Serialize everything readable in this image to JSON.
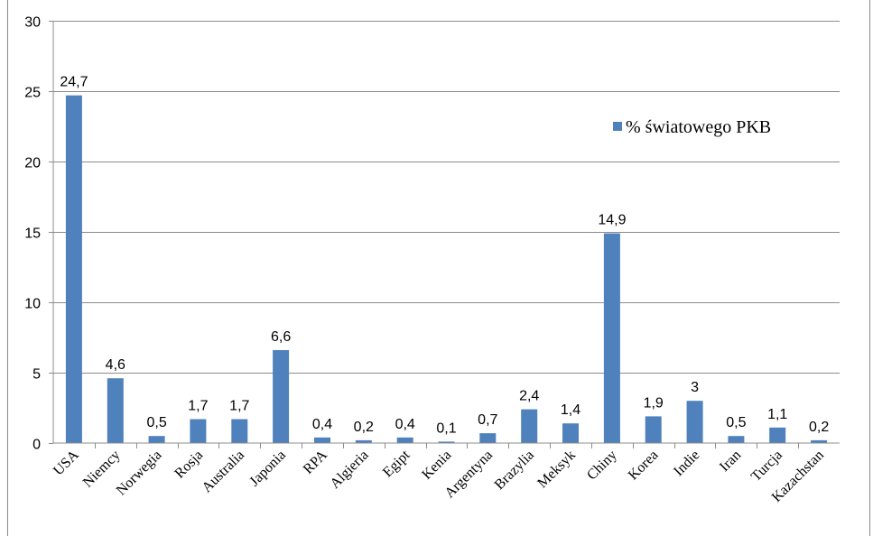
{
  "chart_data": {
    "type": "bar",
    "categories": [
      "USA",
      "Niemcy",
      "Norwegia",
      "Rosja",
      "Australia",
      "Japonia",
      "RPA",
      "Algieria",
      "Egipt",
      "Kenia",
      "Argentyna",
      "Brazylia",
      "Meksyk",
      "Chiny",
      "Korea",
      "Indie",
      "Iran",
      "Turcja",
      "Kazachstan"
    ],
    "series": [
      {
        "name": "% światowego PKB",
        "values": [
          24.7,
          4.6,
          0.5,
          1.7,
          1.7,
          6.6,
          0.4,
          0.2,
          0.4,
          0.1,
          0.7,
          2.4,
          1.4,
          14.9,
          1.9,
          3,
          0.5,
          1.1,
          0.2
        ],
        "labels": [
          "24,7",
          "4,6",
          "0,5",
          "1,7",
          "1,7",
          "6,6",
          "0,4",
          "0,2",
          "0,4",
          "0,1",
          "0,7",
          "2,4",
          "1,4",
          "14,9",
          "1,9",
          "3",
          "0,5",
          "1,1",
          "0,2"
        ],
        "color": "#4f81bd"
      }
    ],
    "ylim": [
      0,
      30
    ],
    "yticks": [
      0,
      5,
      10,
      15,
      20,
      25,
      30
    ],
    "grid": true,
    "legend": "top-right",
    "title": "",
    "xlabel": "",
    "ylabel": ""
  }
}
